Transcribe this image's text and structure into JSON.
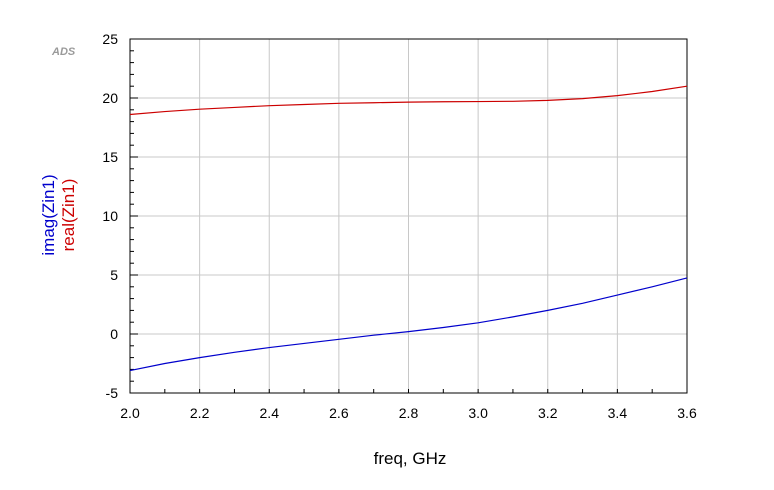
{
  "logo": "ADS",
  "chart_data": {
    "type": "line",
    "xlabel": "freq, GHz",
    "xlim": [
      2.0,
      3.6
    ],
    "ylim": [
      -5,
      25
    ],
    "x_ticks": [
      "2.0",
      "2.2",
      "2.4",
      "2.6",
      "2.8",
      "3.0",
      "3.2",
      "3.4",
      "3.6"
    ],
    "y_ticks": [
      "-5",
      "0",
      "5",
      "10",
      "15",
      "20",
      "25"
    ],
    "grid": true,
    "series": [
      {
        "name": "real(Zin1)",
        "color": "#cc0000",
        "x": [
          2.0,
          2.1,
          2.2,
          2.3,
          2.4,
          2.5,
          2.6,
          2.7,
          2.8,
          2.9,
          3.0,
          3.1,
          3.2,
          3.3,
          3.4,
          3.5,
          3.6
        ],
        "y": [
          18.6,
          18.85,
          19.05,
          19.2,
          19.35,
          19.45,
          19.55,
          19.6,
          19.65,
          19.68,
          19.7,
          19.72,
          19.8,
          19.95,
          20.2,
          20.55,
          21.0
        ]
      },
      {
        "name": "imag(Zin1)",
        "color": "#0000cc",
        "x": [
          2.0,
          2.1,
          2.2,
          2.3,
          2.4,
          2.5,
          2.6,
          2.7,
          2.8,
          2.9,
          3.0,
          3.1,
          3.2,
          3.3,
          3.4,
          3.5,
          3.6
        ],
        "y": [
          -3.1,
          -2.5,
          -2.0,
          -1.55,
          -1.15,
          -0.8,
          -0.45,
          -0.1,
          0.2,
          0.55,
          0.95,
          1.45,
          2.0,
          2.6,
          3.3,
          4.0,
          4.75
        ]
      }
    ]
  }
}
